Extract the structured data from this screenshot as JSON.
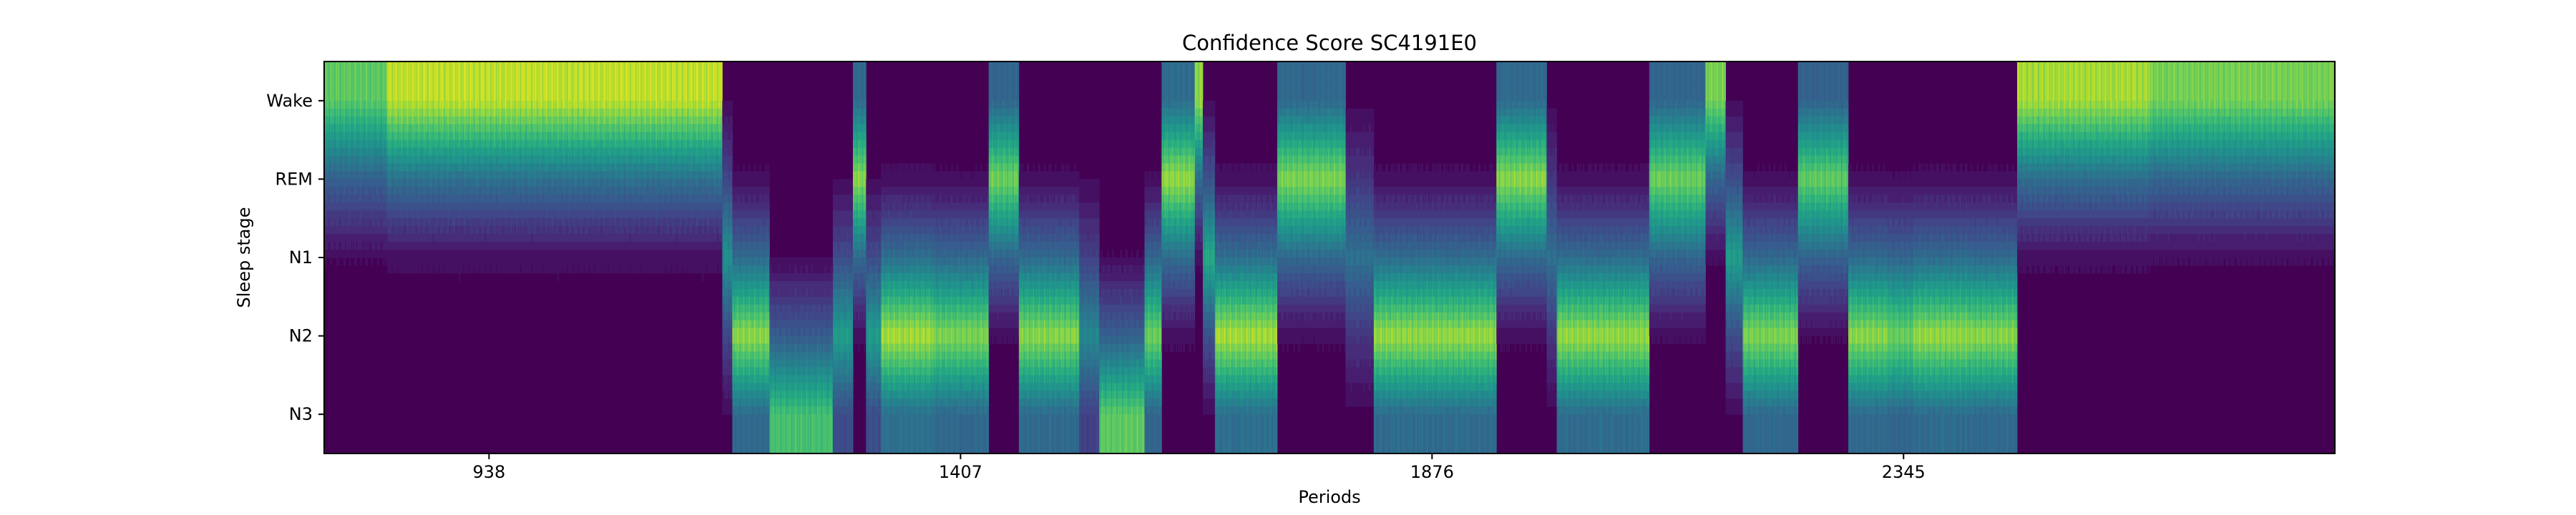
{
  "chart_data": {
    "type": "heatmap",
    "title": "Confidence Score SC4191E0",
    "xlabel": "Periods",
    "ylabel": "Sleep stage",
    "rows": [
      "Wake",
      "REM",
      "N1",
      "N2",
      "N3"
    ],
    "xlim": [
      774,
      2774
    ],
    "xticks": [
      938,
      1407,
      1876,
      2345
    ],
    "colormap": "viridis",
    "value_range": [
      0,
      1
    ],
    "grid": false,
    "segments": [
      {
        "start": 774,
        "end": 836,
        "stage": "Wake",
        "conf": 0.8
      },
      {
        "start": 836,
        "end": 1170,
        "stage": "Wake",
        "conf": 0.97
      },
      {
        "start": 1170,
        "end": 1180,
        "stage": "N1",
        "conf": 0.55
      },
      {
        "start": 1180,
        "end": 1217,
        "stage": "N2",
        "conf": 0.9
      },
      {
        "start": 1217,
        "end": 1280,
        "stage": "N3",
        "conf": 0.75
      },
      {
        "start": 1280,
        "end": 1300,
        "stage": "N2",
        "conf": 0.6
      },
      {
        "start": 1300,
        "end": 1313,
        "stage": "REM",
        "conf": 0.9
      },
      {
        "start": 1313,
        "end": 1328,
        "stage": "N2",
        "conf": 0.6
      },
      {
        "start": 1328,
        "end": 1380,
        "stage": "N2",
        "conf": 0.95
      },
      {
        "start": 1380,
        "end": 1435,
        "stage": "N2",
        "conf": 0.88
      },
      {
        "start": 1435,
        "end": 1465,
        "stage": "REM",
        "conf": 0.85
      },
      {
        "start": 1465,
        "end": 1525,
        "stage": "N2",
        "conf": 0.9
      },
      {
        "start": 1525,
        "end": 1545,
        "stage": "N2",
        "conf": 0.5
      },
      {
        "start": 1545,
        "end": 1590,
        "stage": "N3",
        "conf": 0.8
      },
      {
        "start": 1590,
        "end": 1607,
        "stage": "N2",
        "conf": 0.85
      },
      {
        "start": 1607,
        "end": 1640,
        "stage": "REM",
        "conf": 0.92
      },
      {
        "start": 1640,
        "end": 1648,
        "stage": "Wake",
        "conf": 0.9
      },
      {
        "start": 1648,
        "end": 1660,
        "stage": "N1",
        "conf": 0.65
      },
      {
        "start": 1660,
        "end": 1722,
        "stage": "N2",
        "conf": 0.95
      },
      {
        "start": 1722,
        "end": 1790,
        "stage": "REM",
        "conf": 0.88
      },
      {
        "start": 1790,
        "end": 1818,
        "stage": "N1",
        "conf": 0.4
      },
      {
        "start": 1818,
        "end": 1940,
        "stage": "N2",
        "conf": 0.92
      },
      {
        "start": 1940,
        "end": 1990,
        "stage": "REM",
        "conf": 0.9
      },
      {
        "start": 1990,
        "end": 2000,
        "stage": "N1",
        "conf": 0.4
      },
      {
        "start": 2000,
        "end": 2092,
        "stage": "N2",
        "conf": 0.92
      },
      {
        "start": 2092,
        "end": 2148,
        "stage": "REM",
        "conf": 0.85
      },
      {
        "start": 2148,
        "end": 2168,
        "stage": "Wake",
        "conf": 0.85
      },
      {
        "start": 2168,
        "end": 2185,
        "stage": "N1",
        "conf": 0.6
      },
      {
        "start": 2185,
        "end": 2240,
        "stage": "N2",
        "conf": 0.88
      },
      {
        "start": 2240,
        "end": 2290,
        "stage": "REM",
        "conf": 0.82
      },
      {
        "start": 2290,
        "end": 2330,
        "stage": "N2",
        "conf": 0.9
      },
      {
        "start": 2330,
        "end": 2355,
        "stage": "N2",
        "conf": 0.85
      },
      {
        "start": 2355,
        "end": 2410,
        "stage": "N2",
        "conf": 0.92
      },
      {
        "start": 2410,
        "end": 2458,
        "stage": "N2",
        "conf": 0.9
      },
      {
        "start": 2458,
        "end": 2590,
        "stage": "Wake",
        "conf": 0.93
      },
      {
        "start": 2590,
        "end": 2774,
        "stage": "Wake",
        "conf": 0.85
      }
    ]
  }
}
